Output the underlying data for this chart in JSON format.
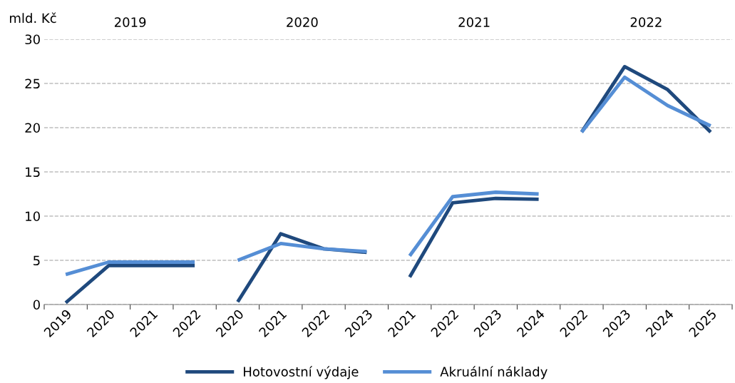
{
  "chart_data": {
    "type": "line",
    "ylabel": "mld. Kč",
    "categories": [
      "2019",
      "2020",
      "2021",
      "2022",
      "2020",
      "2021",
      "2022",
      "2023",
      "2021",
      "2022",
      "2023",
      "2024",
      "2022",
      "2023",
      "2024",
      "2025"
    ],
    "annotations": [
      "2019",
      "2020",
      "2021",
      "2022"
    ],
    "series": [
      {
        "name": "Hotovostní výdaje",
        "color": "#1f497d",
        "values": [
          0.2,
          4.4,
          4.4,
          4.4,
          null,
          null,
          null,
          null,
          null,
          null,
          null,
          null,
          null,
          null,
          null,
          null
        ]
      },
      {
        "color": "#1f497d",
        "values": [
          null,
          null,
          null,
          null,
          0.3,
          8.0,
          6.3,
          5.9,
          null,
          null,
          null,
          null,
          null,
          null,
          null,
          null
        ]
      },
      {
        "color": "#1f497d",
        "values": [
          null,
          null,
          null,
          null,
          null,
          null,
          null,
          null,
          3.1,
          11.5,
          12.0,
          11.9,
          null,
          null,
          null,
          null
        ]
      },
      {
        "color": "#1f497d",
        "values": [
          null,
          null,
          null,
          null,
          null,
          null,
          null,
          null,
          null,
          null,
          null,
          null,
          19.5,
          26.9,
          24.3,
          19.5
        ]
      },
      {
        "name": "Akruální náklady",
        "color": "#558ed5",
        "values": [
          3.4,
          4.8,
          4.8,
          4.8,
          null,
          null,
          null,
          null,
          null,
          null,
          null,
          null,
          null,
          null,
          null,
          null
        ]
      },
      {
        "color": "#558ed5",
        "values": [
          null,
          null,
          null,
          null,
          5.0,
          6.9,
          6.3,
          6.0,
          null,
          null,
          null,
          null,
          null,
          null,
          null,
          null
        ]
      },
      {
        "color": "#558ed5",
        "values": [
          null,
          null,
          null,
          null,
          null,
          null,
          null,
          null,
          5.5,
          12.2,
          12.7,
          12.5,
          null,
          null,
          null,
          null
        ]
      },
      {
        "color": "#558ed5",
        "values": [
          null,
          null,
          null,
          null,
          null,
          null,
          null,
          null,
          null,
          null,
          null,
          null,
          19.5,
          25.7,
          22.5,
          20.2
        ]
      }
    ],
    "ylim": [
      0,
      30
    ],
    "yticks": [
      0,
      5,
      10,
      15,
      20,
      25,
      30
    ],
    "grid": "y",
    "legend": "bottom",
    "line_style": "solid",
    "marker": "none"
  }
}
